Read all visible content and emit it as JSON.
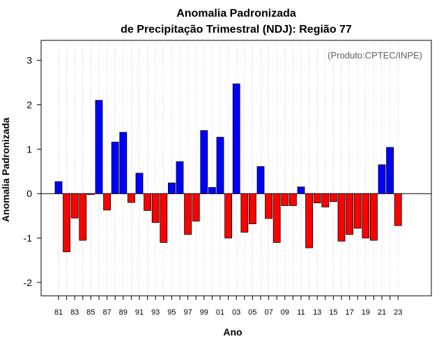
{
  "chart_data": {
    "type": "bar",
    "title_line1": "Anomalia Padronizada",
    "title_line2": "de Precipitação Trimestral (NDJ): Região 77",
    "credit": "(Produto:CPTEC/INPE)",
    "xlabel": "Ano",
    "ylabel": "Anomalia Padronizada",
    "ylim": [
      -2.3,
      3.45
    ],
    "yticks": [
      -2,
      -1,
      0,
      1,
      2,
      3
    ],
    "grid": true,
    "positive_color": "#0000ff",
    "negative_color": "#ff0000",
    "categories": [
      "81",
      "82",
      "83",
      "84",
      "85",
      "86",
      "87",
      "88",
      "89",
      "90",
      "91",
      "92",
      "93",
      "94",
      "95",
      "96",
      "97",
      "98",
      "99",
      "00",
      "01",
      "02",
      "03",
      "04",
      "05",
      "06",
      "07",
      "08",
      "09",
      "10",
      "11",
      "12",
      "13",
      "14",
      "15",
      "16",
      "17",
      "18",
      "19",
      "20",
      "21",
      "22",
      "23"
    ],
    "xtick_labels": [
      "81",
      "83",
      "85",
      "87",
      "89",
      "91",
      "93",
      "95",
      "97",
      "99",
      "01",
      "03",
      "05",
      "07",
      "09",
      "11",
      "13",
      "15",
      "17",
      "19",
      "21",
      "23"
    ],
    "values": [
      0.27,
      -1.31,
      -0.55,
      -1.05,
      -0.02,
      2.1,
      -0.37,
      1.16,
      1.38,
      -0.2,
      0.46,
      -0.38,
      -0.65,
      -1.1,
      0.24,
      0.72,
      -0.92,
      -0.62,
      1.42,
      0.14,
      1.27,
      -1.0,
      2.47,
      -0.87,
      -0.68,
      0.61,
      -0.56,
      -1.1,
      -0.27,
      -0.27,
      0.15,
      -1.22,
      -0.21,
      -0.3,
      -0.18,
      -1.07,
      -0.92,
      -0.78,
      -1.0,
      -1.05,
      0.65,
      1.04,
      -0.72
    ]
  }
}
